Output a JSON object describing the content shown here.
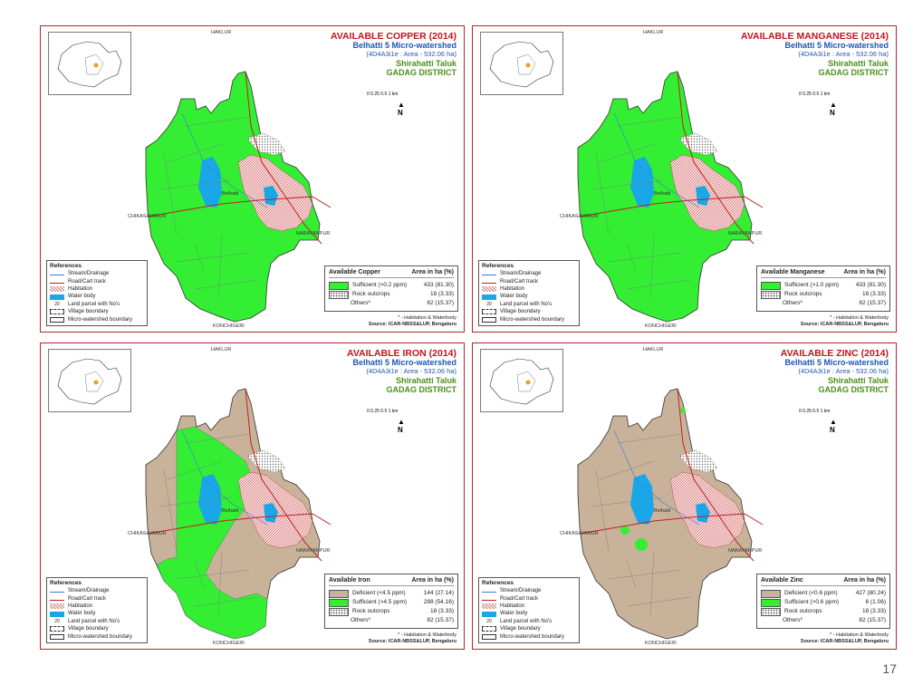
{
  "panels": [
    {
      "title": "AVAILABLE COPPER (2014)",
      "legend_header": "Available Copper",
      "entries": [
        {
          "label": "Sufficient (>0.2 ppm)",
          "value": "433 (81.30)",
          "color": "#33ee33"
        },
        {
          "label": "Rock outcrops",
          "value": "18 (3.33)",
          "color": "rock"
        },
        {
          "label": "Others*",
          "value": "82 (15.37)",
          "color": "none"
        }
      ]
    },
    {
      "title": "AVAILABLE MANGANESE (2014)",
      "legend_header": "Available Manganese",
      "entries": [
        {
          "label": "Sufficient (>1.0 ppm)",
          "value": "433 (81.30)",
          "color": "#33ee33"
        },
        {
          "label": "Rock outcrops",
          "value": "18 (3.33)",
          "color": "rock"
        },
        {
          "label": "Others*",
          "value": "82 (15.37)",
          "color": "none"
        }
      ]
    },
    {
      "title": "AVAILABLE IRON (2014)",
      "legend_header": "Available Iron",
      "entries": [
        {
          "label": "Deficient (<4.5 ppm)",
          "value": "144 (27.14)",
          "color": "#c8b39a"
        },
        {
          "label": "Sufficient (>4.5 ppm)",
          "value": "288 (54.16)",
          "color": "#33ee33"
        },
        {
          "label": "Rock outcrops",
          "value": "18 (3.33)",
          "color": "rock"
        },
        {
          "label": "Others*",
          "value": "82 (15.37)",
          "color": "none"
        }
      ]
    },
    {
      "title": "AVAILABLE ZINC (2014)",
      "legend_header": "Available Zinc",
      "entries": [
        {
          "label": "Deficient (<0.6 ppm)",
          "value": "427 (80.24)",
          "color": "#c8b39a"
        },
        {
          "label": "Sufficient (>0.6 ppm)",
          "value": "6 (1.06)",
          "color": "#33ee33"
        },
        {
          "label": "Rock outcrops",
          "value": "18 (3.33)",
          "color": "rock"
        },
        {
          "label": "Others*",
          "value": "82 (15.37)",
          "color": "none"
        }
      ]
    }
  ],
  "common": {
    "subtitle": "Belhatti 5 Micro-watershed",
    "area": "(4D4A3i1e : Area - 532.06 ha)",
    "taluk": "Shirahatti Taluk",
    "district": "GADAG DISTRICT",
    "area_col": "Area in ha (%)",
    "note": "* - Habitation & Waterbody",
    "source": "Source: ICAR-NBSS&LUP, Bengaluru",
    "refs_title": "References",
    "refs": [
      "Stream/Drainage",
      "Road/Cart track",
      "Habitation",
      "Water body",
      "Land parcel with No's",
      "Village boundary",
      "Micro-watershed boundary"
    ],
    "parcel_no": "20",
    "place_top": "HAKLUR",
    "place_left": "CHIKASAVANUR",
    "place_right": "NARAYANPUR",
    "place_bottom": "KONCHIGERI",
    "place_center": "Belhatti",
    "north": "N",
    "scale_label": "0  0.25  0.5   1 km"
  },
  "page_number": "17"
}
